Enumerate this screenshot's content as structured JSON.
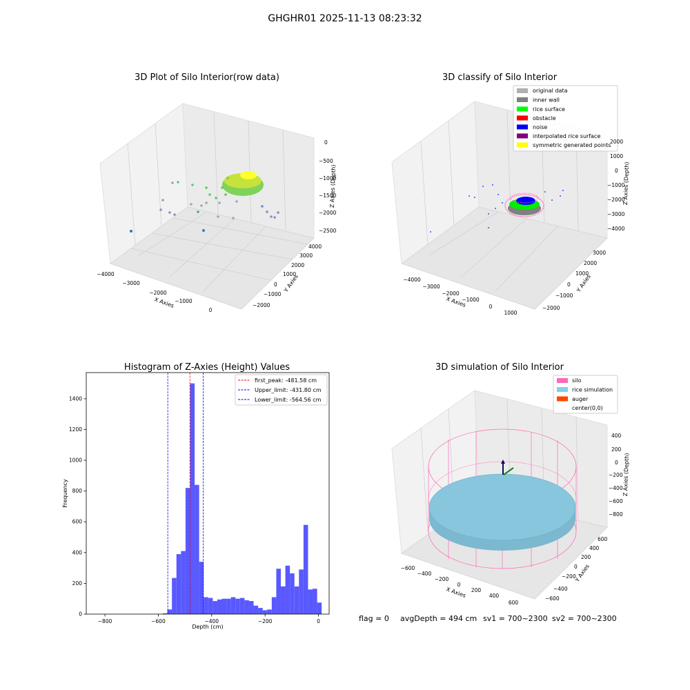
{
  "figure": {
    "suptitle": "GHGHR01 2025-11-13 08:23:32",
    "status": {
      "flag": "flag = 0",
      "avg_depth": "avgDepth = 494 cm",
      "sv1": "sv1 = 700~2300",
      "sv2": "sv2 = 700~2300"
    }
  },
  "panels": {
    "raw3d": {
      "title": "3D Plot of Silo Interior(row data)",
      "xlabel": "X Axies",
      "ylabel": "Y Axies",
      "zlabel": "Z Axies (Depth)",
      "xticks": [
        "−4000",
        "−3000",
        "−2000",
        "−1000",
        "0"
      ],
      "yticks": [
        "−2000",
        "−1000",
        "0",
        "1000",
        "2000",
        "3000",
        "4000"
      ],
      "zticks": [
        "0",
        "−500",
        "−1000",
        "−1500",
        "−2000",
        "−2500"
      ]
    },
    "classify3d": {
      "title": "3D classify of Silo Interior",
      "xlabel": "X Axies",
      "ylabel": "Y Axies",
      "zlabel": "Z Axies (Depth)",
      "xticks": [
        "−4000",
        "−3000",
        "−2000",
        "−1000",
        "0",
        "1000"
      ],
      "yticks": [
        "−2000",
        "−1000",
        "0",
        "1000",
        "2000",
        "3000"
      ],
      "zticks": [
        "2000",
        "1000",
        "0",
        "−1000",
        "−2000",
        "−3000",
        "−4000"
      ],
      "legend": [
        {
          "label": "original data",
          "color": "#b0b0b0"
        },
        {
          "label": "inner wall",
          "color": "#808080"
        },
        {
          "label": "rice surface",
          "color": "#00ff00"
        },
        {
          "label": "obstacle",
          "color": "#ff0000"
        },
        {
          "label": "noise",
          "color": "#0000ff"
        },
        {
          "label": "interpolated rice surface",
          "color": "#800080"
        },
        {
          "label": "symmetric generated points",
          "color": "#ffff00"
        }
      ]
    },
    "sim3d": {
      "title": "3D simulation of Silo Interior",
      "xlabel": "X Axies",
      "ylabel": "Y Axies",
      "zlabel": "Z Axies (Depth)",
      "xticks": [
        "−600",
        "−400",
        "−200",
        "0",
        "200",
        "400",
        "600"
      ],
      "yticks": [
        "−600",
        "−400",
        "−200",
        "0",
        "200",
        "400",
        "600"
      ],
      "zticks": [
        "400",
        "200",
        "0",
        "−200",
        "−400",
        "−600",
        "−800"
      ],
      "legend": [
        {
          "label": "silo",
          "color": "#ff69b4"
        },
        {
          "label": "rice simulation",
          "color": "#87ceeb"
        },
        {
          "label": "auger",
          "color": "#ff4500"
        },
        {
          "label": "center(0,0)",
          "color": ""
        }
      ]
    }
  },
  "chart_data": {
    "type": "bar",
    "title": "Histogram of Z-Axies (Height) Values",
    "xlabel": "Depth (cm)",
    "ylabel": "Frequency",
    "xlim": [
      -870,
      40
    ],
    "ylim": [
      0,
      1570
    ],
    "xticks": [
      -800,
      -600,
      -400,
      -200,
      0
    ],
    "yticks": [
      0,
      200,
      400,
      600,
      800,
      1000,
      1200,
      1400
    ],
    "bin_width": 17,
    "bin_left_edges": [
      -583,
      -566,
      -549,
      -532,
      -515,
      -498,
      -481,
      -464,
      -447,
      -430,
      -413,
      -396,
      -379,
      -362,
      -345,
      -328,
      -311,
      -294,
      -277,
      -260,
      -243,
      -226,
      -209,
      -192,
      -175,
      -158,
      -141,
      -124,
      -107,
      -90,
      -73,
      -56,
      -39,
      -22,
      -5
    ],
    "counts": [
      5,
      30,
      235,
      390,
      410,
      820,
      1500,
      840,
      340,
      110,
      105,
      85,
      95,
      100,
      100,
      110,
      100,
      105,
      90,
      85,
      55,
      40,
      25,
      30,
      110,
      295,
      180,
      315,
      265,
      180,
      290,
      580,
      160,
      165,
      75
    ],
    "reference_lines": [
      {
        "label": "first_peak: -481.58 cm",
        "value": -481.58,
        "color": "#ff0000"
      },
      {
        "label": "Upper_limit: -431.80 cm",
        "value": -431.8,
        "color": "#0000ff"
      },
      {
        "label": "Lower_limit: -564.56 cm",
        "value": -564.56,
        "color": "#0000ff"
      }
    ],
    "bar_color": "#5050ff",
    "grid": false,
    "legend_position": "top-right"
  }
}
